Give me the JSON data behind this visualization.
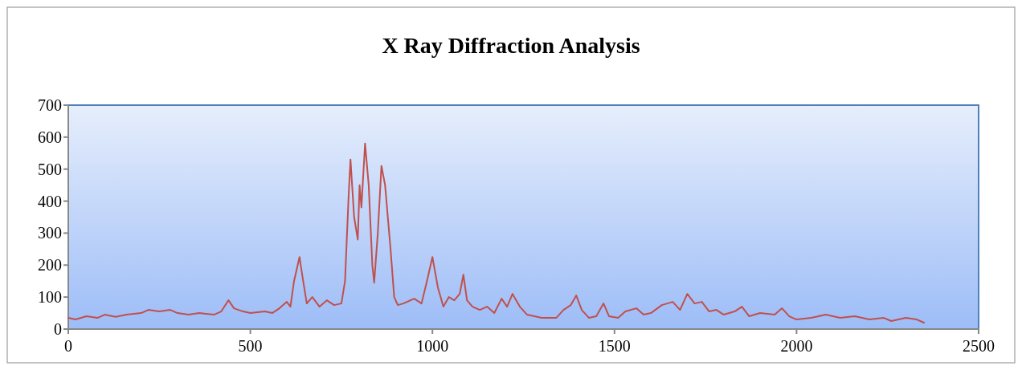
{
  "chart_data": {
    "type": "line",
    "title": "X Ray Diffraction Analysis",
    "xlim": [
      0,
      2500
    ],
    "xticks": [
      0,
      500,
      1000,
      1500,
      2000,
      2500
    ],
    "ylim": [
      0,
      700
    ],
    "yticks": [
      0,
      100,
      200,
      300,
      400,
      500,
      600,
      700
    ],
    "line_style": "solid",
    "series": [
      {
        "color": "#c0504d",
        "x": [
          0,
          20,
          50,
          80,
          100,
          130,
          160,
          200,
          220,
          250,
          280,
          300,
          330,
          360,
          400,
          420,
          440,
          455,
          480,
          500,
          540,
          560,
          580,
          600,
          610,
          620,
          635,
          645,
          655,
          670,
          690,
          710,
          730,
          750,
          760,
          770,
          775,
          785,
          795,
          800,
          805,
          815,
          825,
          835,
          840,
          850,
          860,
          870,
          885,
          895,
          905,
          920,
          950,
          970,
          985,
          1000,
          1015,
          1030,
          1045,
          1060,
          1075,
          1085,
          1095,
          1110,
          1130,
          1150,
          1170,
          1190,
          1205,
          1220,
          1240,
          1260,
          1300,
          1340,
          1360,
          1380,
          1395,
          1410,
          1430,
          1450,
          1470,
          1485,
          1510,
          1530,
          1560,
          1580,
          1600,
          1630,
          1660,
          1680,
          1700,
          1720,
          1740,
          1760,
          1780,
          1800,
          1830,
          1850,
          1870,
          1900,
          1940,
          1960,
          1980,
          2000,
          2040,
          2080,
          2120,
          2160,
          2200,
          2240,
          2260,
          2300,
          2330,
          2350
        ],
        "values": [
          35,
          30,
          40,
          35,
          45,
          38,
          45,
          50,
          60,
          55,
          60,
          50,
          45,
          50,
          45,
          55,
          90,
          65,
          55,
          50,
          55,
          50,
          65,
          85,
          70,
          150,
          225,
          150,
          80,
          100,
          70,
          90,
          75,
          80,
          150,
          420,
          530,
          350,
          280,
          450,
          380,
          580,
          450,
          200,
          145,
          300,
          510,
          450,
          250,
          100,
          75,
          80,
          95,
          80,
          150,
          225,
          130,
          70,
          100,
          90,
          110,
          170,
          90,
          70,
          60,
          70,
          50,
          95,
          70,
          110,
          70,
          45,
          35,
          35,
          60,
          75,
          105,
          60,
          35,
          40,
          80,
          40,
          35,
          55,
          65,
          45,
          50,
          75,
          85,
          60,
          110,
          80,
          85,
          55,
          60,
          45,
          55,
          70,
          40,
          50,
          45,
          65,
          40,
          30,
          35,
          45,
          35,
          40,
          30,
          35,
          25,
          35,
          30,
          20
        ]
      }
    ]
  }
}
